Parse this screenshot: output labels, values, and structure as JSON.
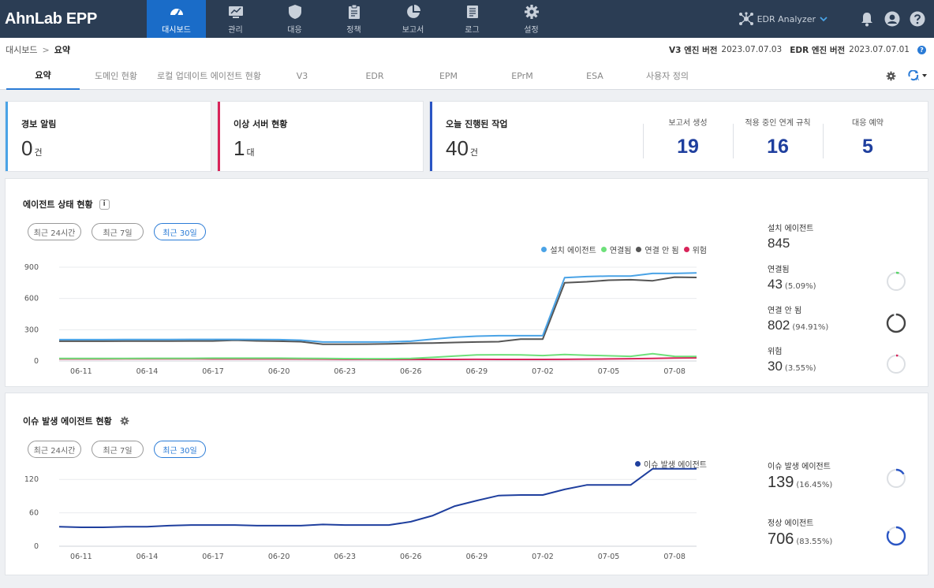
{
  "app": {
    "logo": "AhnLab EPP"
  },
  "nav": {
    "items": [
      {
        "label": "대시보드",
        "icon": "dashboard-gauge-icon",
        "active": true
      },
      {
        "label": "관리",
        "icon": "monitor-chart-icon",
        "active": false
      },
      {
        "label": "대응",
        "icon": "shield-icon",
        "active": false
      },
      {
        "label": "정책",
        "icon": "clipboard-icon",
        "active": false
      },
      {
        "label": "보고서",
        "icon": "pie-chart-icon",
        "active": false
      },
      {
        "label": "로그",
        "icon": "document-icon",
        "active": false
      },
      {
        "label": "설정",
        "icon": "gear-icon",
        "active": false
      }
    ],
    "edr_analyzer": "EDR Analyzer"
  },
  "breadcrumb": {
    "root": "대시보드",
    "current": "요약"
  },
  "versions": {
    "v3_label": "V3 엔진 버전",
    "v3_value": "2023.07.07.03",
    "edr_label": "EDR 엔진 버전",
    "edr_value": "2023.07.07.01"
  },
  "tabs": [
    "요약",
    "도메인 현황",
    "로컬 업데이트 에이전트 현황",
    "V3",
    "EDR",
    "EPM",
    "EPrM",
    "ESA",
    "사용자 정의"
  ],
  "cards": {
    "alert": {
      "title": "경보 알림",
      "value": "0",
      "unit": "건",
      "color": "#4aa3e6"
    },
    "server": {
      "title": "이상 서버 현황",
      "value": "1",
      "unit": "대",
      "color": "#d8245a"
    },
    "tasks": {
      "title": "오늘 진행된 작업",
      "value": "40",
      "unit": "건",
      "color": "#2a55c4",
      "sub": [
        {
          "label": "보고서 생성",
          "value": "19"
        },
        {
          "label": "적용 중인 연계 규칙",
          "value": "16"
        },
        {
          "label": "대응 예약",
          "value": "5"
        }
      ]
    }
  },
  "agent_status": {
    "title": "에이전트 상태 현황",
    "info": "i",
    "filters": [
      {
        "label": "최근 24시간",
        "active": false
      },
      {
        "label": "최근 7일",
        "active": false
      },
      {
        "label": "최근 30일",
        "active": true
      }
    ],
    "stats": [
      {
        "label": "설치 에이전트",
        "value": "845",
        "pct": ""
      },
      {
        "label": "연결됨",
        "value": "43",
        "pct": "(5.09%)",
        "fraction": 0.0509,
        "color": "#5ad46a"
      },
      {
        "label": "연결 안 됨",
        "value": "802",
        "pct": "(94.91%)",
        "fraction": 0.9491,
        "color": "#444444"
      },
      {
        "label": "위험",
        "value": "30",
        "pct": "(3.55%)",
        "fraction": 0.0355,
        "color": "#d8245a"
      }
    ]
  },
  "issue_agents": {
    "title": "이슈 발생 에이전트 현황",
    "filters": [
      {
        "label": "최근 24시간",
        "active": false
      },
      {
        "label": "최근 7일",
        "active": false
      },
      {
        "label": "최근 30일",
        "active": true
      }
    ],
    "stats": [
      {
        "label": "이슈 발생 에이전트",
        "value": "139",
        "pct": "(16.45%)",
        "fraction": 0.1645,
        "color": "#2a55c4"
      },
      {
        "label": "정상 에이전트",
        "value": "706",
        "pct": "(83.55%)",
        "fraction": 0.8355,
        "color": "#2a55c4"
      }
    ]
  },
  "chart_data": [
    {
      "type": "line",
      "ylim": [
        0,
        900
      ],
      "yticks": [
        0,
        300,
        600,
        900
      ],
      "x": [
        "06-10",
        "06-11",
        "06-12",
        "06-13",
        "06-14",
        "06-15",
        "06-16",
        "06-17",
        "06-18",
        "06-19",
        "06-20",
        "06-21",
        "06-22",
        "06-23",
        "06-24",
        "06-25",
        "06-26",
        "06-27",
        "06-28",
        "06-29",
        "06-30",
        "07-01",
        "07-02",
        "07-03",
        "07-04",
        "07-05",
        "07-06",
        "07-07",
        "07-08",
        "07-09"
      ],
      "xticks": [
        "06-11",
        "06-14",
        "06-17",
        "06-20",
        "06-23",
        "06-26",
        "06-29",
        "07-02",
        "07-05",
        "07-08"
      ],
      "grid": true,
      "legend": "top-right",
      "series": [
        {
          "name": "설치 에이전트",
          "color": "#4aa3e6",
          "values": [
            205,
            205,
            205,
            206,
            206,
            206,
            207,
            207,
            207,
            206,
            205,
            200,
            182,
            182,
            182,
            183,
            190,
            210,
            228,
            238,
            243,
            243,
            243,
            800,
            810,
            815,
            815,
            840,
            840,
            845
          ]
        },
        {
          "name": "연결됨",
          "color": "#6ee07a",
          "values": [
            25,
            25,
            25,
            25,
            26,
            26,
            26,
            27,
            27,
            27,
            27,
            26,
            25,
            23,
            22,
            22,
            25,
            35,
            48,
            58,
            60,
            58,
            52,
            62,
            55,
            50,
            45,
            70,
            45,
            43
          ]
        },
        {
          "name": "연결 안 됨",
          "color": "#555555",
          "values": [
            190,
            190,
            190,
            191,
            191,
            191,
            192,
            192,
            200,
            193,
            190,
            185,
            160,
            160,
            162,
            164,
            170,
            172,
            178,
            182,
            185,
            210,
            210,
            750,
            760,
            775,
            780,
            770,
            805,
            802
          ]
        },
        {
          "name": "위험",
          "color": "#d8245a",
          "values": [
            20,
            20,
            20,
            21,
            21,
            21,
            21,
            20,
            20,
            20,
            20,
            19,
            18,
            16,
            16,
            15,
            15,
            15,
            15,
            16,
            15,
            15,
            15,
            16,
            18,
            20,
            22,
            25,
            28,
            30
          ]
        }
      ]
    },
    {
      "type": "line",
      "ylim": [
        0,
        150
      ],
      "yticks": [
        0,
        60,
        120
      ],
      "x": [
        "06-10",
        "06-11",
        "06-12",
        "06-13",
        "06-14",
        "06-15",
        "06-16",
        "06-17",
        "06-18",
        "06-19",
        "06-20",
        "06-21",
        "06-22",
        "06-23",
        "06-24",
        "06-25",
        "06-26",
        "06-27",
        "06-28",
        "06-29",
        "06-30",
        "07-01",
        "07-02",
        "07-03",
        "07-04",
        "07-05",
        "07-06",
        "07-07",
        "07-08",
        "07-09"
      ],
      "xticks": [
        "06-11",
        "06-14",
        "06-17",
        "06-20",
        "06-23",
        "06-26",
        "06-29",
        "07-02",
        "07-05",
        "07-08"
      ],
      "grid": true,
      "legend": "top-right",
      "series": [
        {
          "name": "이슈 발생 에이전트",
          "color": "#1f3f9e",
          "values": [
            35,
            34,
            34,
            35,
            35,
            37,
            38,
            38,
            38,
            37,
            37,
            37,
            39,
            38,
            38,
            38,
            44,
            55,
            72,
            82,
            91,
            92,
            92,
            102,
            110,
            110,
            110,
            139,
            139,
            139
          ]
        }
      ]
    }
  ]
}
